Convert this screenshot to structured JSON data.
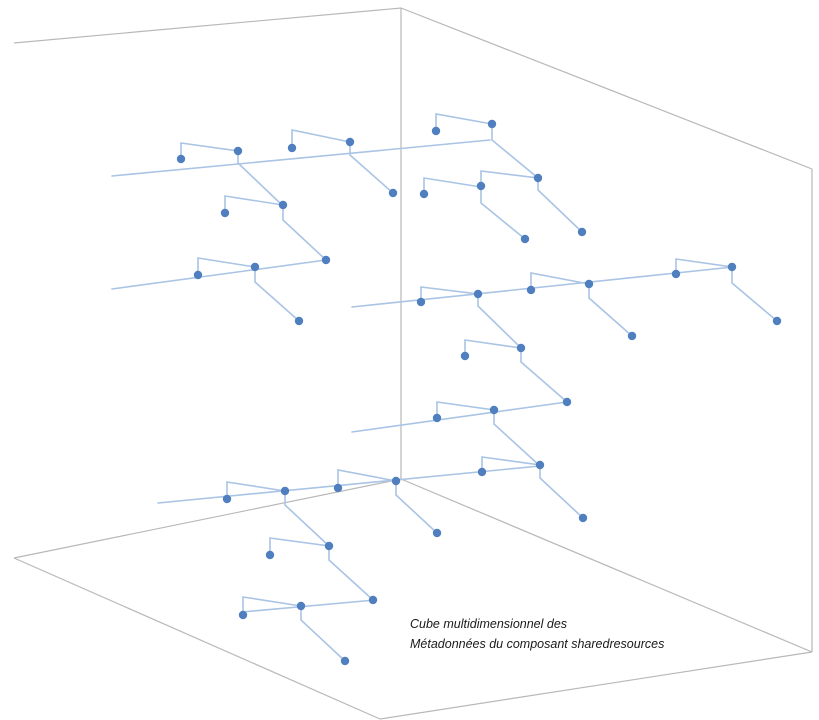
{
  "caption": {
    "line1": "Cube multidimensionnel des",
    "line2": "Métadonnées du composant sharedresources"
  },
  "colors": {
    "cube": "#b8b8b8",
    "branch": "#a9c4e4",
    "node": "#4f7fbf"
  }
}
